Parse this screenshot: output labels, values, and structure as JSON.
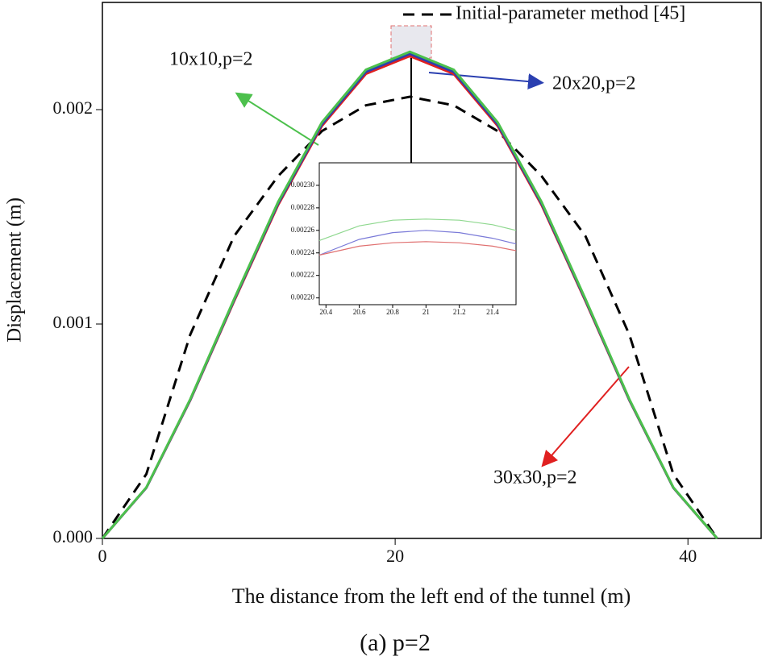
{
  "chart_data": [
    {
      "type": "line",
      "x_label": "The distance from the left end of the tunnel (m)",
      "y_label": "Displacement (m)",
      "caption": "(a) p=2",
      "xlim": [
        0,
        45
      ],
      "xticks": [
        0,
        20,
        40
      ],
      "ylim": [
        0,
        0.0025
      ],
      "yticks": [
        {
          "value": 0,
          "label": "0.000"
        },
        0.001,
        0.002
      ],
      "x": [
        0,
        3,
        6,
        9,
        12,
        15,
        18,
        21,
        24,
        27,
        30,
        33,
        36,
        39,
        42
      ],
      "series": [
        {
          "name": "Initial-parameter method [45]",
          "color": "#000000",
          "dashed": true,
          "values": [
            0,
            0.0003,
            0.00095,
            0.00141,
            0.00169,
            0.0019,
            0.00202,
            0.00206,
            0.00202,
            0.0019,
            0.00169,
            0.00141,
            0.00095,
            0.0003,
            0
          ]
        },
        {
          "name": "30x30,p=2",
          "color": "#e02020",
          "values": [
            0,
            0.000236,
            0.000644,
            0.001107,
            0.001555,
            0.001924,
            0.002167,
            0.00225,
            0.002167,
            0.001924,
            0.001555,
            0.001107,
            0.000644,
            0.000236,
            0
          ]
        },
        {
          "name": "20x20,p=2",
          "color": "#2a3fb0",
          "values": [
            0,
            0.000237,
            0.000646,
            0.001112,
            0.001562,
            0.001932,
            0.002176,
            0.00226,
            0.002176,
            0.001932,
            0.001562,
            0.001112,
            0.000646,
            0.000237,
            0
          ]
        },
        {
          "name": "10x10,p=2",
          "color": "#4cc04c",
          "values": [
            0,
            0.000238,
            0.000649,
            0.001117,
            0.001569,
            0.001941,
            0.002186,
            0.00227,
            0.002186,
            0.001941,
            0.001569,
            0.001117,
            0.000649,
            0.000238,
            0
          ]
        }
      ]
    },
    {
      "type": "line",
      "xlim": [
        20.36,
        21.54
      ],
      "xticks": [
        20.4,
        20.6,
        20.8,
        21.0,
        21.2,
        21.4
      ],
      "ylim": [
        0.002194,
        0.00232
      ],
      "yticks": [
        {
          "value": 0.0022,
          "label": "0.00220"
        },
        0.00222,
        0.00224,
        0.00226,
        0.00228,
        {
          "value": 0.0023,
          "label": "0.00230"
        }
      ],
      "x": [
        20.36,
        20.6,
        20.8,
        21.0,
        21.2,
        21.4,
        21.54
      ],
      "series": [
        {
          "color": "#8fd88f",
          "values": [
            0.002251,
            0.002264,
            0.002269,
            0.00227,
            0.002269,
            0.002265,
            0.00226
          ]
        },
        {
          "color": "#7a7ad8",
          "values": [
            0.002238,
            0.002252,
            0.002258,
            0.00226,
            0.002258,
            0.002253,
            0.002248
          ]
        },
        {
          "color": "#e07070",
          "values": [
            0.002238,
            0.002246,
            0.002249,
            0.00225,
            0.002249,
            0.002246,
            0.002242
          ]
        }
      ]
    }
  ]
}
